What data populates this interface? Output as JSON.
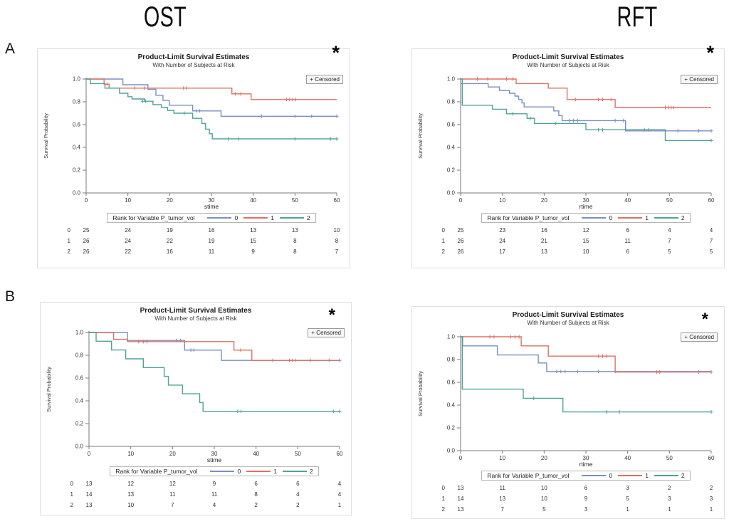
{
  "headers": {
    "columns": [
      "OST",
      "RFT"
    ],
    "rows": [
      "A",
      "B"
    ]
  },
  "colors": {
    "group0": "#7b8fc2",
    "group1": "#dd7066",
    "group2": "#4fa29a",
    "panel_border": "#dbe0e8",
    "axis": "#7a7a7a",
    "text": "#2e2e2e"
  },
  "chart_data": [
    {
      "id": "A-OST",
      "row": "A",
      "column": "OST",
      "type": "line",
      "title": "Product-Limit Survival Estimates",
      "subtitle": "With Number of Subjects at Risk",
      "annotation": "*",
      "censored_label": "+ Censored",
      "xlabel": "stime",
      "ylabel": "Survival Probability",
      "xlim": [
        0,
        60
      ],
      "ylim": [
        0.0,
        1.0
      ],
      "xticks": [
        0,
        10,
        20,
        30,
        40,
        50,
        60
      ],
      "yticks": [
        0.0,
        0.2,
        0.4,
        0.6,
        0.8,
        1.0
      ],
      "legend_title": "Rank for Variable P_tumor_vol",
      "groups": [
        {
          "name": "0",
          "color_key": "group0",
          "steps": [
            [
              0,
              1.0
            ],
            [
              8.8,
              0.95
            ],
            [
              14.8,
              0.91
            ],
            [
              16.7,
              0.857
            ],
            [
              18.4,
              0.813
            ],
            [
              19.9,
              0.77
            ],
            [
              25.5,
              0.72
            ],
            [
              32.3,
              0.673
            ]
          ],
          "censors": [
            [
              26.4,
              0.72
            ],
            [
              27.2,
              0.72
            ],
            [
              42,
              0.673
            ],
            [
              50,
              0.673
            ],
            [
              54,
              0.673
            ],
            [
              60,
              0.673
            ]
          ]
        },
        {
          "name": "1",
          "color_key": "group1",
          "steps": [
            [
              0,
              1.0
            ],
            [
              4.3,
              0.955
            ],
            [
              5.5,
              0.92
            ],
            [
              34.9,
              0.87
            ],
            [
              39.5,
              0.82
            ]
          ],
          "censors": [
            [
              5,
              0.955
            ],
            [
              11.6,
              0.92
            ],
            [
              13.9,
              0.92
            ],
            [
              23.3,
              0.92
            ],
            [
              24,
              0.92
            ],
            [
              35.7,
              0.87
            ],
            [
              37,
              0.87
            ],
            [
              48,
              0.82
            ],
            [
              48.7,
              0.82
            ],
            [
              49.4,
              0.82
            ],
            [
              50.2,
              0.82
            ]
          ]
        },
        {
          "name": "2",
          "color_key": "group2",
          "steps": [
            [
              0,
              1.0
            ],
            [
              1,
              0.96
            ],
            [
              4.5,
              0.92
            ],
            [
              8,
              0.875
            ],
            [
              10,
              0.845
            ],
            [
              11,
              0.825
            ],
            [
              14,
              0.805
            ],
            [
              16,
              0.775
            ],
            [
              18,
              0.75
            ],
            [
              19.5,
              0.725
            ],
            [
              21,
              0.7
            ],
            [
              25.5,
              0.655
            ],
            [
              27.7,
              0.61
            ],
            [
              28.6,
              0.56
            ],
            [
              29.5,
              0.52
            ],
            [
              30.2,
              0.475
            ]
          ],
          "censors": [
            [
              13.5,
              0.805
            ],
            [
              14.2,
              0.805
            ],
            [
              23.5,
              0.7
            ],
            [
              34,
              0.475
            ],
            [
              36.5,
              0.475
            ],
            [
              50,
              0.475
            ],
            [
              58.5,
              0.475
            ],
            [
              60,
              0.475
            ]
          ]
        }
      ],
      "at_risk": {
        "rows": [
          {
            "label": "0",
            "values": [
              25,
              24,
              19,
              16,
              13,
              13,
              10
            ]
          },
          {
            "label": "1",
            "values": [
              26,
              24,
              22,
              19,
              15,
              8,
              8
            ]
          },
          {
            "label": "2",
            "values": [
              26,
              22,
              16,
              11,
              9,
              8,
              7
            ]
          }
        ]
      }
    },
    {
      "id": "A-RFT",
      "row": "A",
      "column": "RFT",
      "type": "line",
      "title": "Product-Limit Survival Estimates",
      "subtitle": "With Number of Subjects at Risk",
      "annotation": "*",
      "censored_label": "+ Censored",
      "xlabel": "rtime",
      "ylabel": "Survival Probability",
      "xlim": [
        0,
        60
      ],
      "ylim": [
        0.0,
        1.0
      ],
      "xticks": [
        0,
        10,
        20,
        30,
        40,
        50,
        60
      ],
      "yticks": [
        0.0,
        0.2,
        0.4,
        0.6,
        0.8,
        1.0
      ],
      "legend_title": "Rank for Variable P_tumor_vol",
      "groups": [
        {
          "name": "0",
          "color_key": "group0",
          "steps": [
            [
              0,
              0.96
            ],
            [
              6.6,
              0.93
            ],
            [
              9.3,
              0.9
            ],
            [
              11.7,
              0.875
            ],
            [
              13,
              0.85
            ],
            [
              13.9,
              0.82
            ],
            [
              14.7,
              0.79
            ],
            [
              15.2,
              0.755
            ],
            [
              22.3,
              0.72
            ],
            [
              23.5,
              0.68
            ],
            [
              24.3,
              0.635
            ],
            [
              39.5,
              0.545
            ]
          ],
          "censors": [
            [
              26,
              0.635
            ],
            [
              27,
              0.635
            ],
            [
              28,
              0.635
            ],
            [
              37,
              0.635
            ],
            [
              39,
              0.635
            ],
            [
              52,
              0.545
            ],
            [
              57,
              0.545
            ],
            [
              60,
              0.545
            ]
          ]
        },
        {
          "name": "1",
          "color_key": "group1",
          "steps": [
            [
              0,
              1.0
            ],
            [
              13.3,
              0.96
            ],
            [
              21,
              0.92
            ],
            [
              25.5,
              0.82
            ],
            [
              37,
              0.75
            ]
          ],
          "censors": [
            [
              4,
              1.0
            ],
            [
              6.5,
              1.0
            ],
            [
              11,
              1.0
            ],
            [
              12.5,
              1.0
            ],
            [
              27.5,
              0.82
            ],
            [
              33,
              0.82
            ],
            [
              34,
              0.82
            ],
            [
              36,
              0.82
            ],
            [
              49,
              0.75
            ],
            [
              49.7,
              0.75
            ],
            [
              50.4,
              0.75
            ],
            [
              51,
              0.75
            ]
          ]
        },
        {
          "name": "2",
          "color_key": "group2",
          "steps": [
            [
              0,
              1.0
            ],
            [
              0.4,
              0.77
            ],
            [
              7.6,
              0.735
            ],
            [
              11,
              0.695
            ],
            [
              15.9,
              0.655
            ],
            [
              17.7,
              0.61
            ],
            [
              30,
              0.555
            ],
            [
              49,
              0.46
            ]
          ],
          "censors": [
            [
              12.5,
              0.695
            ],
            [
              16.7,
              0.655
            ],
            [
              22.8,
              0.61
            ],
            [
              33,
              0.555
            ],
            [
              34,
              0.555
            ],
            [
              44,
              0.555
            ],
            [
              45,
              0.555
            ],
            [
              60,
              0.46
            ]
          ]
        }
      ],
      "at_risk": {
        "rows": [
          {
            "label": "0",
            "values": [
              25,
              23,
              16,
              12,
              6,
              4,
              4
            ]
          },
          {
            "label": "1",
            "values": [
              26,
              24,
              21,
              15,
              11,
              7,
              7
            ]
          },
          {
            "label": "2",
            "values": [
              26,
              17,
              13,
              10,
              6,
              5,
              5
            ]
          }
        ]
      }
    },
    {
      "id": "B-OST",
      "row": "B",
      "column": "OST",
      "type": "line",
      "title": "Product-Limit Survival Estimates",
      "subtitle": "With Number of Subjects at Risk",
      "annotation": "*",
      "censored_label": "+ Censored",
      "xlabel": "stime",
      "ylabel": "Survival Probability",
      "xlim": [
        0,
        60
      ],
      "ylim": [
        0.0,
        1.0
      ],
      "xticks": [
        0,
        10,
        20,
        30,
        40,
        50,
        60
      ],
      "yticks": [
        0.0,
        0.2,
        0.4,
        0.6,
        0.8,
        1.0
      ],
      "legend_title": "Rank for Variable P_tumor_vol",
      "groups": [
        {
          "name": "0",
          "color_key": "group0",
          "steps": [
            [
              0,
              1.0
            ],
            [
              9.2,
              0.93
            ],
            [
              22.9,
              0.845
            ],
            [
              31.7,
              0.755
            ]
          ],
          "censors": [
            [
              20.9,
              0.93
            ],
            [
              21.9,
              0.93
            ],
            [
              24.4,
              0.845
            ],
            [
              25.1,
              0.845
            ],
            [
              44,
              0.755
            ],
            [
              53,
              0.755
            ],
            [
              57.5,
              0.755
            ],
            [
              60,
              0.755
            ]
          ]
        },
        {
          "name": "1",
          "color_key": "group1",
          "steps": [
            [
              0,
              1.0
            ],
            [
              5.9,
              0.94
            ],
            [
              9.2,
              0.92
            ],
            [
              34.7,
              0.845
            ],
            [
              39,
              0.755
            ]
          ],
          "censors": [
            [
              11.9,
              0.92
            ],
            [
              13,
              0.92
            ],
            [
              13.9,
              0.92
            ],
            [
              36.3,
              0.845
            ],
            [
              48,
              0.755
            ],
            [
              48.7,
              0.755
            ],
            [
              49.4,
              0.755
            ]
          ]
        },
        {
          "name": "2",
          "color_key": "group2",
          "steps": [
            [
              0,
              1.0
            ],
            [
              1.7,
              0.923
            ],
            [
              5.4,
              0.846
            ],
            [
              8.8,
              0.769
            ],
            [
              13,
              0.692
            ],
            [
              18,
              0.615
            ],
            [
              19,
              0.538
            ],
            [
              22.4,
              0.462
            ],
            [
              26.5,
              0.385
            ],
            [
              27.3,
              0.308
            ]
          ],
          "censors": [
            [
              35.6,
              0.308
            ],
            [
              36.4,
              0.308
            ],
            [
              58.5,
              0.308
            ],
            [
              60,
              0.308
            ]
          ]
        }
      ],
      "at_risk": {
        "rows": [
          {
            "label": "0",
            "values": [
              13,
              12,
              12,
              9,
              6,
              6,
              4
            ]
          },
          {
            "label": "1",
            "values": [
              14,
              13,
              11,
              11,
              8,
              4,
              4
            ]
          },
          {
            "label": "2",
            "values": [
              13,
              10,
              7,
              4,
              2,
              2,
              1
            ]
          }
        ]
      }
    },
    {
      "id": "B-RFT",
      "row": "B",
      "column": "RFT",
      "type": "line",
      "title": "Product-Limit Survival Estimates",
      "subtitle": "With Number of Subjects at Risk",
      "annotation": "*",
      "censored_label": "+ Censored",
      "xlabel": "rtime",
      "ylabel": "Survival Probability",
      "xlim": [
        0,
        60
      ],
      "ylim": [
        0.0,
        1.0
      ],
      "xticks": [
        0,
        10,
        20,
        30,
        40,
        50,
        60
      ],
      "yticks": [
        0.0,
        0.2,
        0.4,
        0.6,
        0.8,
        1.0
      ],
      "legend_title": "Rank for Variable P_tumor_vol",
      "groups": [
        {
          "name": "0",
          "color_key": "group0",
          "steps": [
            [
              0,
              1.0
            ],
            [
              0.5,
              0.92
            ],
            [
              8.8,
              0.84
            ],
            [
              18.6,
              0.77
            ],
            [
              20.6,
              0.695
            ]
          ],
          "censors": [
            [
              23,
              0.695
            ],
            [
              24,
              0.695
            ],
            [
              25,
              0.695
            ],
            [
              28,
              0.695
            ],
            [
              33,
              0.695
            ],
            [
              37,
              0.695
            ],
            [
              57,
              0.69
            ],
            [
              60,
              0.69
            ]
          ]
        },
        {
          "name": "1",
          "color_key": "group1",
          "steps": [
            [
              0,
              1.0
            ],
            [
              14.5,
              0.92
            ],
            [
              21,
              0.83
            ],
            [
              37,
              0.69
            ]
          ],
          "censors": [
            [
              7,
              1.0
            ],
            [
              8,
              1.0
            ],
            [
              12,
              1.0
            ],
            [
              13,
              1.0
            ],
            [
              14,
              1.0
            ],
            [
              33,
              0.83
            ],
            [
              34,
              0.83
            ],
            [
              35,
              0.83
            ],
            [
              47,
              0.69
            ],
            [
              47.7,
              0.69
            ]
          ]
        },
        {
          "name": "2",
          "color_key": "group2",
          "steps": [
            [
              0,
              1.0
            ],
            [
              0.4,
              0.54
            ],
            [
              15,
              0.46
            ],
            [
              24.5,
              0.34
            ]
          ],
          "censors": [
            [
              17.5,
              0.46
            ],
            [
              35,
              0.34
            ],
            [
              38,
              0.34
            ],
            [
              60,
              0.34
            ]
          ]
        }
      ],
      "at_risk": {
        "rows": [
          {
            "label": "0",
            "values": [
              13,
              11,
              10,
              6,
              3,
              2,
              2
            ]
          },
          {
            "label": "1",
            "values": [
              14,
              13,
              10,
              9,
              5,
              3,
              3
            ]
          },
          {
            "label": "2",
            "values": [
              13,
              7,
              5,
              3,
              1,
              1,
              1
            ]
          }
        ]
      }
    }
  ]
}
